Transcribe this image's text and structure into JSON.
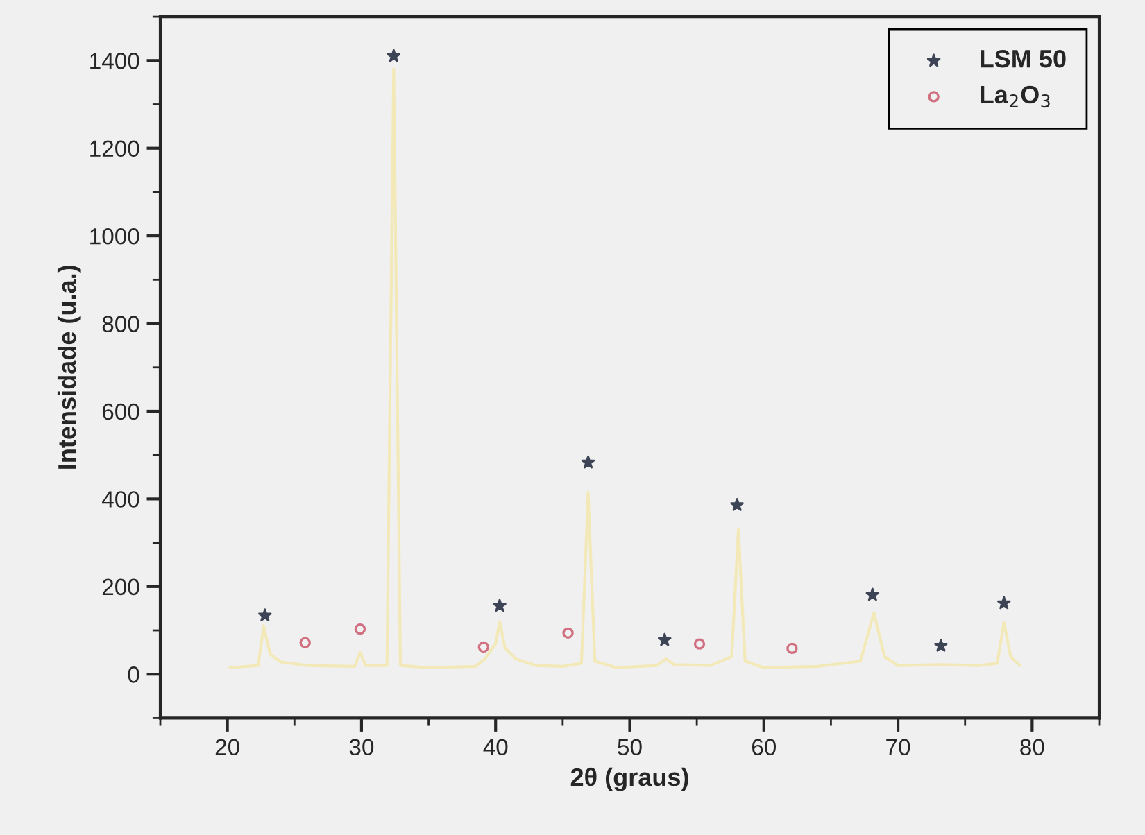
{
  "chart_data": {
    "type": "line",
    "xlabel": "2θ (graus)",
    "ylabel": "Intensidade (u.a.)",
    "xlim": [
      15,
      85
    ],
    "xticks": [
      20,
      30,
      40,
      50,
      60,
      70,
      80
    ],
    "ylim": [
      -100,
      1500
    ],
    "yticks": [
      0,
      200,
      400,
      600,
      800,
      1000,
      1200,
      1400
    ],
    "grid": false,
    "legend": "top right",
    "series": [
      {
        "color": "#f3e9b8",
        "marker": "none",
        "line_style": "solid",
        "x": [
          20.2,
          22.3,
          22.7,
          23.2,
          24,
          26,
          29.5,
          29.9,
          30.3,
          31.9,
          32.4,
          32.9,
          35,
          38.5,
          39.2,
          40.0,
          40.3,
          40.7,
          41.5,
          43,
          45,
          46.4,
          46.9,
          47.4,
          49,
          52,
          52.7,
          53.3,
          56,
          57.6,
          58.1,
          58.6,
          60,
          64,
          67.2,
          68.2,
          69,
          70,
          73.2,
          76,
          77.4,
          77.9,
          78.4,
          79.1
        ],
        "values": [
          15,
          20,
          110,
          45,
          28,
          20,
          18,
          50,
          20,
          20,
          1380,
          20,
          15,
          18,
          35,
          70,
          120,
          60,
          35,
          20,
          18,
          25,
          415,
          30,
          15,
          20,
          35,
          22,
          20,
          40,
          330,
          30,
          15,
          18,
          30,
          140,
          40,
          20,
          22,
          20,
          25,
          118,
          40,
          20
        ]
      },
      {
        "type": "scatter",
        "name": "LSM 50",
        "color": "#3c4456",
        "marker": "star",
        "x": [
          22.8,
          32.4,
          40.3,
          46.9,
          52.6,
          58.0,
          68.1,
          73.2,
          77.9
        ],
        "values": [
          134,
          1410,
          156,
          483,
          78,
          386,
          181,
          65,
          162
        ]
      },
      {
        "type": "scatter",
        "name": "La$_{2}$O$_{3}$",
        "color": "#d07080",
        "marker": "circle",
        "x": [
          25.8,
          29.9,
          39.1,
          45.4,
          55.2,
          62.1
        ],
        "values": [
          72,
          103,
          62,
          94,
          69,
          59
        ]
      }
    ]
  }
}
